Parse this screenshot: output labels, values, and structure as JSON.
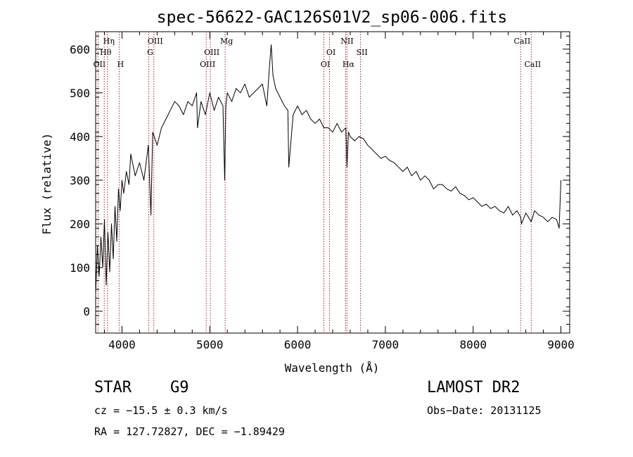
{
  "chart_data": {
    "type": "line",
    "title": "spec-56622-GAC126S01V2_sp06-006.fits",
    "xlabel": "Wavelength (Å)",
    "ylabel": "Flux (relative)",
    "xlim": [
      3700,
      9100
    ],
    "ylim": [
      -50,
      640
    ],
    "xticks": [
      4000,
      5000,
      6000,
      7000,
      8000,
      9000
    ],
    "yticks": [
      0,
      100,
      200,
      300,
      400,
      500,
      600
    ],
    "grid": false,
    "line_color": "#000000",
    "marker_color": "#b22222",
    "series": [
      {
        "values_x": [
          3700,
          3720,
          3740,
          3760,
          3780,
          3800,
          3820,
          3840,
          3860,
          3880,
          3900,
          3920,
          3940,
          3960,
          3980,
          4000,
          4020,
          4050,
          4080,
          4100,
          4150,
          4200,
          4250,
          4300,
          4330,
          4350,
          4400,
          4450,
          4500,
          4550,
          4600,
          4650,
          4700,
          4750,
          4800,
          4850,
          4860,
          4900,
          4950,
          5000,
          5050,
          5100,
          5150,
          5170,
          5183,
          5200,
          5250,
          5300,
          5350,
          5400,
          5450,
          5500,
          5550,
          5600,
          5650,
          5680,
          5700,
          5720,
          5750,
          5800,
          5850,
          5890,
          5900,
          5950,
          6000,
          6050,
          6100,
          6150,
          6200,
          6250,
          6300,
          6350,
          6400,
          6450,
          6500,
          6550,
          6563,
          6580,
          6600,
          6650,
          6700,
          6750,
          6800,
          6850,
          6900,
          6950,
          7000,
          7050,
          7100,
          7150,
          7200,
          7250,
          7300,
          7350,
          7400,
          7450,
          7500,
          7550,
          7600,
          7650,
          7700,
          7750,
          7800,
          7850,
          7900,
          7950,
          8000,
          8050,
          8100,
          8150,
          8200,
          8250,
          8300,
          8350,
          8400,
          8450,
          8500,
          8542,
          8550,
          8600,
          8662,
          8700,
          8750,
          8800,
          8850,
          8900,
          8950,
          8980,
          9000
        ],
        "values_y": [
          40,
          150,
          80,
          170,
          100,
          210,
          60,
          180,
          90,
          200,
          120,
          240,
          160,
          280,
          230,
          300,
          270,
          320,
          290,
          360,
          310,
          340,
          300,
          380,
          220,
          410,
          380,
          420,
          440,
          460,
          480,
          470,
          450,
          480,
          470,
          500,
          420,
          480,
          450,
          500,
          460,
          490,
          470,
          300,
          470,
          500,
          480,
          510,
          500,
          520,
          490,
          500,
          510,
          520,
          470,
          560,
          610,
          540,
          510,
          490,
          470,
          460,
          330,
          450,
          470,
          450,
          460,
          440,
          430,
          440,
          420,
          420,
          410,
          430,
          410,
          420,
          330,
          410,
          400,
          390,
          400,
          395,
          380,
          370,
          360,
          350,
          355,
          345,
          340,
          330,
          320,
          330,
          310,
          320,
          300,
          310,
          300,
          280,
          290,
          290,
          280,
          275,
          285,
          270,
          265,
          255,
          260,
          250,
          240,
          245,
          235,
          240,
          230,
          225,
          240,
          220,
          230,
          215,
          200,
          225,
          205,
          230,
          220,
          215,
          205,
          215,
          210,
          190,
          300
        ]
      }
    ],
    "line_markers": [
      {
        "label": "OII",
        "x": 3727,
        "row": 3
      },
      {
        "label": "Hθ",
        "x": 3798,
        "row": 2
      },
      {
        "label": "Hη",
        "x": 3835,
        "row": 1
      },
      {
        "label": "H",
        "x": 3968,
        "row": 3
      },
      {
        "label": "G",
        "x": 4305,
        "row": 2
      },
      {
        "label": "OIII",
        "x": 4363,
        "row": 1
      },
      {
        "label": "OIII",
        "x": 4959,
        "row": 3
      },
      {
        "label": "OIII",
        "x": 5007,
        "row": 2
      },
      {
        "label": "Mg",
        "x": 5175,
        "row": 1
      },
      {
        "label": "OI",
        "x": 6300,
        "row": 3
      },
      {
        "label": "OI",
        "x": 6364,
        "row": 2
      },
      {
        "label": "NII",
        "x": 6548,
        "row": 1
      },
      {
        "label": "Hα",
        "x": 6563,
        "row": 3
      },
      {
        "label": "SII",
        "x": 6717,
        "row": 2
      },
      {
        "label": "CaII",
        "x": 8542,
        "row": 1
      },
      {
        "label": "CaII",
        "x": 8662,
        "row": 3
      }
    ]
  },
  "info": {
    "object_class": "STAR",
    "subclass": "G9",
    "survey": "LAMOST DR2",
    "cz": "cz = −15.5 ± 0.3 km/s",
    "obs_date": "Obs−Date: 20131125",
    "coords": "RA = 127.72827, DEC =  −1.89429"
  }
}
